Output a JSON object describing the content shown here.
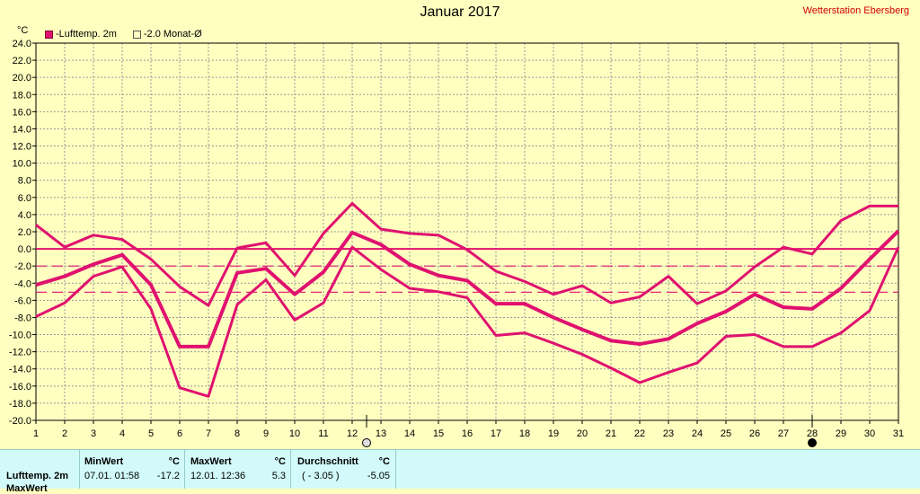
{
  "chart_data": {
    "type": "line",
    "title": "Januar 2017",
    "source_label": "Wetterstation Ebersberg",
    "ylabel": "°C",
    "ylim": [
      -20,
      24
    ],
    "xlim": [
      1,
      31
    ],
    "yticks": [
      "24.0",
      "22.0",
      "20.0",
      "18.0",
      "16.0",
      "14.0",
      "12.0",
      "10.0",
      "8.0",
      "6.0",
      "4.0",
      "2.0",
      "0.0",
      "-2.0",
      "-4.0",
      "-6.0",
      "-8.0",
      "-10.0",
      "-12.0",
      "-14.0",
      "-16.0",
      "-18.0",
      "-20.0"
    ],
    "x": [
      1,
      2,
      3,
      4,
      5,
      6,
      7,
      8,
      9,
      10,
      11,
      12,
      13,
      14,
      15,
      16,
      17,
      18,
      19,
      20,
      21,
      22,
      23,
      24,
      25,
      26,
      27,
      28,
      29,
      30,
      31
    ],
    "legend": [
      "-Lufttemp. 2m",
      "-2.0 Monat-Ø"
    ],
    "grid": true,
    "series": [
      {
        "name": "-Lufttemp. 2m",
        "role": "max",
        "color": "#e0116f",
        "values": [
          2.8,
          0.2,
          1.6,
          1.1,
          -1.2,
          -4.4,
          -6.6,
          0.1,
          0.7,
          -3.1,
          1.8,
          5.3,
          2.3,
          1.8,
          1.6,
          -0.1,
          -2.6,
          -3.8,
          -5.3,
          -4.3,
          -6.3,
          -5.6,
          -3.2,
          -6.4,
          -4.9,
          -2.1,
          0.2,
          -0.6,
          3.3,
          5.0,
          5.0
        ]
      },
      {
        "role": "mean",
        "color": "#e0116f",
        "values": [
          -4.2,
          -3.2,
          -1.8,
          -0.7,
          -4.2,
          -11.4,
          -11.4,
          -2.8,
          -2.3,
          -5.3,
          -2.7,
          1.9,
          0.5,
          -1.8,
          -3.1,
          -3.7,
          -6.4,
          -6.4,
          -8.0,
          -9.4,
          -10.7,
          -11.1,
          -10.5,
          -8.7,
          -7.3,
          -5.3,
          -6.8,
          -7.0,
          -4.6,
          -1.2,
          2.1
        ]
      },
      {
        "role": "min",
        "color": "#e0116f",
        "values": [
          -7.9,
          -6.3,
          -3.2,
          -2.1,
          -7.0,
          -16.2,
          -17.2,
          -6.5,
          -3.6,
          -8.3,
          -6.3,
          0.2,
          -2.4,
          -4.6,
          -5.0,
          -5.7,
          -10.1,
          -9.8,
          -11.0,
          -12.3,
          -13.9,
          -15.6,
          -14.4,
          -13.3,
          -10.2,
          -10.0,
          -11.4,
          -11.4,
          -9.8,
          -7.2,
          0.2
        ]
      }
    ],
    "reference_lines": [
      {
        "value": 0,
        "style": "solid",
        "color": "#e0116f"
      },
      {
        "value": -2,
        "style": "dashed",
        "color": "#e0116f"
      },
      {
        "value": -5.05,
        "style": "dashed",
        "color": "#e0116f"
      }
    ],
    "markers": [
      {
        "x": 12.5,
        "symbol": "first-quarter-moon",
        "marker_name": "first-quarter-moon-icon"
      },
      {
        "x": 28,
        "symbol": "new-moon",
        "marker_name": "new-moon-icon"
      }
    ]
  },
  "stats": {
    "row_label": "Lufttemp. 2m",
    "row2_label": "MaxWert",
    "min_header": "MinWert",
    "min_unit": "°C",
    "min_time": "07.01.  01:58",
    "min_value": "-17.2",
    "max_header": "MaxWert",
    "max_unit": "°C",
    "max_time": "12.01.  12:36",
    "max_value": "5.3",
    "avg_header": "Durchschnitt",
    "avg_unit": "°C",
    "avg_paren": "( - 3.05 )",
    "avg_value": "-5.05"
  }
}
